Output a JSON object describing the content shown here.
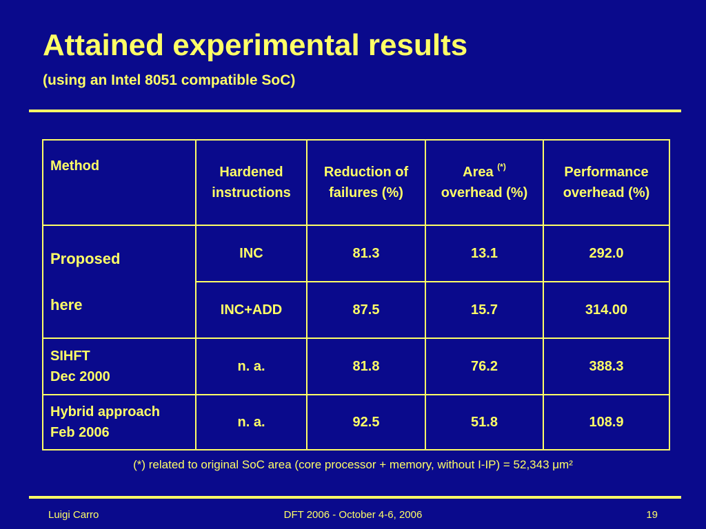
{
  "slide": {
    "title": "Attained experimental results",
    "subtitle": "(using an Intel 8051 compatible SoC)"
  },
  "table": {
    "headers": {
      "method": "Method",
      "hardened": "Hardened instructions",
      "reduction": "Reduction of failures (%)",
      "area": "Area",
      "area_mark": "(*)",
      "area_line2": "overhead (%)",
      "performance": "Performance overhead (%)"
    },
    "rows": [
      {
        "method_line1": "Proposed",
        "method_line2": "here",
        "hardened": "INC",
        "reduction": "81.3",
        "area": "13.1",
        "performance": "292.0"
      },
      {
        "hardened": "INC+ADD",
        "reduction": "87.5",
        "area": "15.7",
        "performance": "314.00"
      },
      {
        "method_line1": "SIHFT",
        "method_line2": "Dec 2000",
        "hardened": "n. a.",
        "reduction": "81.8",
        "area": "76.2",
        "performance": "388.3"
      },
      {
        "method_line1": "Hybrid approach",
        "method_line2": "Feb 2006",
        "hardened": "n. a.",
        "reduction": "92.5",
        "area": "51.8",
        "performance": "108.9"
      }
    ]
  },
  "footnote": "(*) related to original SoC area (core processor + memory, without I-IP) = 52,343 μm²",
  "footer": {
    "author": "Luigi Carro",
    "conference": "DFT 2006  - October 4-6, 2006",
    "page": "19"
  },
  "colors": {
    "background": "#0a0a8c",
    "text": "#ffff66"
  }
}
